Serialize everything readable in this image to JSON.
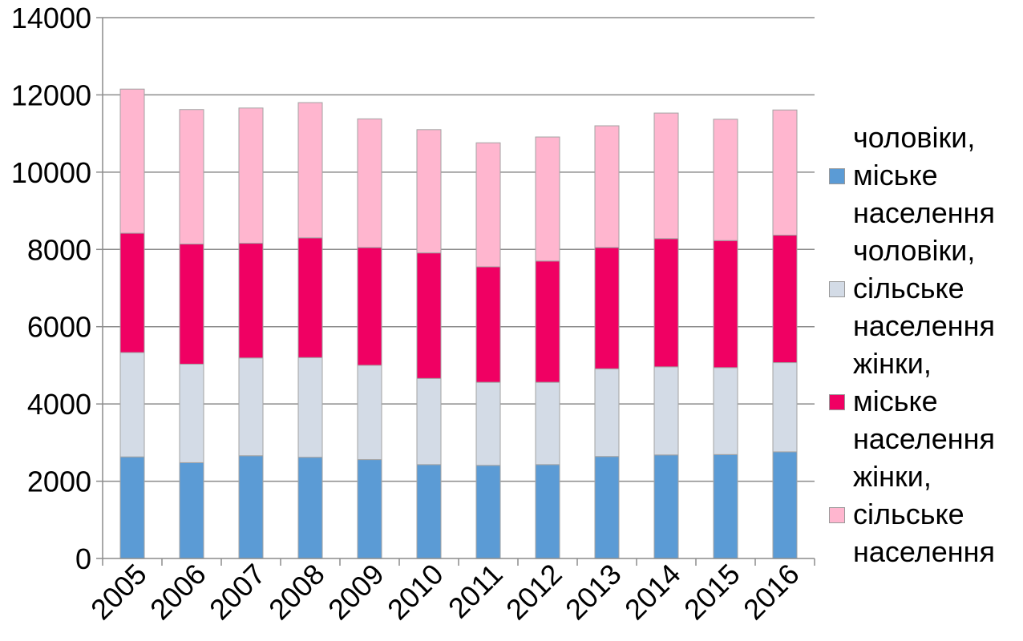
{
  "chart_data": {
    "type": "bar",
    "stacked": true,
    "categories": [
      "2005",
      "2006",
      "2007",
      "2008",
      "2009",
      "2010",
      "2011",
      "2012",
      "2013",
      "2014",
      "2015",
      "2016"
    ],
    "series": [
      {
        "name": "чоловіки, міське населення",
        "name_lines": [
          "чоловіки,",
          "міське",
          "населення"
        ],
        "color": "#5b9bd5",
        "values": [
          2630,
          2480,
          2660,
          2620,
          2560,
          2430,
          2410,
          2430,
          2640,
          2680,
          2690,
          2760
        ]
      },
      {
        "name": "чоловіки, сільське населення",
        "name_lines": [
          "чоловіки,",
          "сільське",
          "населення"
        ],
        "color": "#d3dbe6",
        "values": [
          2700,
          2550,
          2530,
          2580,
          2440,
          2230,
          2150,
          2130,
          2270,
          2280,
          2250,
          2310
        ]
      },
      {
        "name": "жінки, міське населення",
        "name_lines": [
          "жінки,",
          "міське",
          "населення"
        ],
        "color": "#f00063",
        "values": [
          3090,
          3110,
          2970,
          3100,
          3050,
          3250,
          2990,
          3140,
          3140,
          3320,
          3290,
          3300
        ]
      },
      {
        "name": "жінки, сільське населення",
        "name_lines": [
          "жінки,",
          "сільське",
          "населення"
        ],
        "color": "#ffb6cf",
        "values": [
          3730,
          3480,
          3500,
          3500,
          3330,
          3190,
          3210,
          3210,
          3150,
          3250,
          3140,
          3240
        ]
      }
    ],
    "yticks": [
      "0",
      "2000",
      "4000",
      "6000",
      "8000",
      "10000",
      "12000",
      "14000"
    ],
    "ylim": [
      0,
      14000
    ],
    "grid": true,
    "legend_position": "right"
  }
}
